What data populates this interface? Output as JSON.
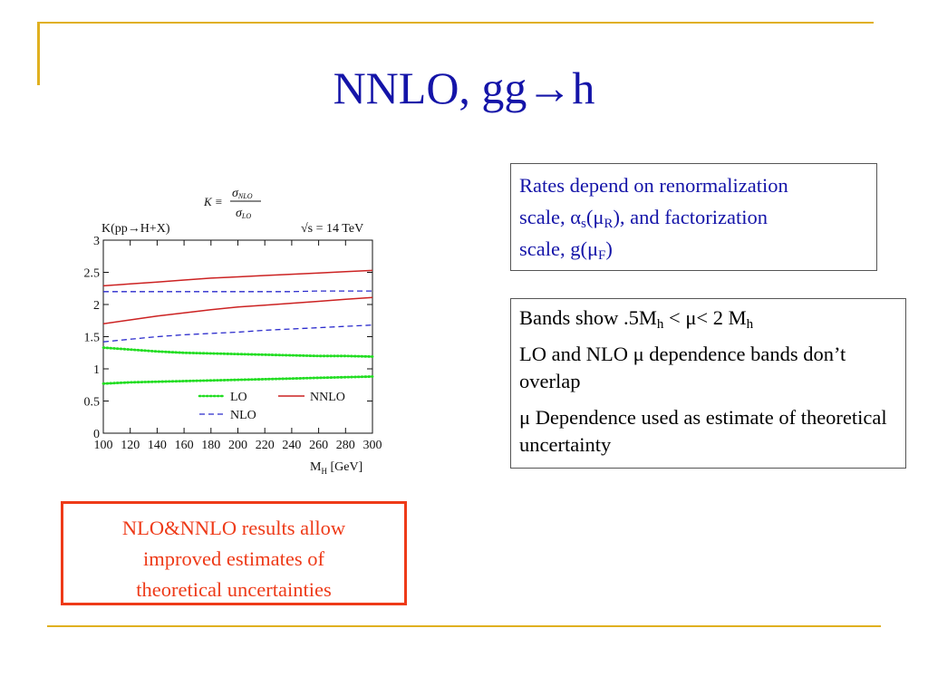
{
  "slide": {
    "title": "NNLO, gg→h",
    "box_scale": {
      "line1": "Rates depend on renormalization",
      "line2_a": "scale, α",
      "line2_sub1": "s",
      "line2_b": "(μ",
      "line2_sub2": "R",
      "line2_c": "), and factorization",
      "line3_a": "scale, g(μ",
      "line3_sub": "F",
      "line3_b": ")"
    },
    "box_bands": {
      "p1_a": "Bands show .5M",
      "p1_sub1": "h",
      "p1_b": " < μ< 2 M",
      "p1_sub2": "h",
      "p2": "LO and NLO μ dependence bands don’t overlap",
      "p3": "μ Dependence used as estimate of theoretical uncertainty"
    },
    "box_results": {
      "line1": "NLO&NNLO results allow",
      "line2": "improved estimates of",
      "line3": "theoretical uncertainties"
    }
  },
  "chart_data": {
    "type": "line",
    "formula": {
      "lhs": "K ≡",
      "num": "σ",
      "num_sub": "NLO",
      "den": "σ",
      "den_sub": "LO"
    },
    "title_left": "K(pp→H+X)",
    "title_right": "√s = 14 TeV",
    "xlabel_main": "M",
    "xlabel_sub": "H",
    "xlabel_unit": " [GeV]",
    "xlim": [
      100,
      300
    ],
    "ylim": [
      0,
      3
    ],
    "x_ticks": [
      "100",
      "120",
      "140",
      "160",
      "180",
      "200",
      "220",
      "240",
      "260",
      "280",
      "300"
    ],
    "y_ticks": [
      "0",
      "0.5",
      "1",
      "1.5",
      "2",
      "2.5",
      "3"
    ],
    "legend": [
      {
        "name": "LO",
        "color": "#22dd22",
        "style": "dotted"
      },
      {
        "name": "NNLO",
        "color": "#cc2222",
        "style": "solid"
      },
      {
        "name": "NLO",
        "color": "#2a2acc",
        "style": "dashed"
      }
    ],
    "x": [
      100,
      120,
      140,
      160,
      180,
      200,
      220,
      240,
      260,
      280,
      300
    ],
    "series": [
      {
        "band": "LO",
        "edge": "upper",
        "color": "#22dd22",
        "style": "dotted",
        "values": [
          1.33,
          1.3,
          1.27,
          1.25,
          1.24,
          1.23,
          1.22,
          1.21,
          1.2,
          1.2,
          1.19
        ]
      },
      {
        "band": "LO",
        "edge": "lower",
        "color": "#22dd22",
        "style": "dotted",
        "values": [
          0.77,
          0.79,
          0.8,
          0.81,
          0.82,
          0.83,
          0.84,
          0.85,
          0.86,
          0.87,
          0.88
        ]
      },
      {
        "band": "NLO",
        "edge": "upper",
        "color": "#2a2acc",
        "style": "dashed",
        "values": [
          2.2,
          2.2,
          2.2,
          2.2,
          2.2,
          2.2,
          2.2,
          2.2,
          2.21,
          2.21,
          2.21
        ]
      },
      {
        "band": "NLO",
        "edge": "lower",
        "color": "#2a2acc",
        "style": "dashed",
        "values": [
          1.42,
          1.46,
          1.5,
          1.53,
          1.55,
          1.57,
          1.6,
          1.62,
          1.64,
          1.66,
          1.68
        ]
      },
      {
        "band": "NNLO",
        "edge": "upper",
        "color": "#cc2222",
        "style": "solid",
        "values": [
          2.29,
          2.32,
          2.35,
          2.38,
          2.41,
          2.43,
          2.45,
          2.47,
          2.49,
          2.51,
          2.53
        ]
      },
      {
        "band": "NNLO",
        "edge": "lower",
        "color": "#cc2222",
        "style": "solid",
        "values": [
          1.7,
          1.76,
          1.82,
          1.87,
          1.92,
          1.96,
          1.99,
          2.02,
          2.05,
          2.08,
          2.11
        ]
      }
    ]
  }
}
